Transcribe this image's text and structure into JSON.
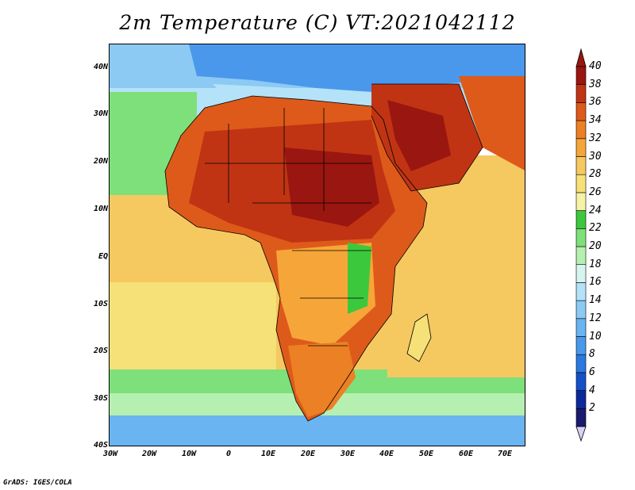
{
  "title": "2m Temperature (C) VT:2021042112",
  "footer": "GrADS: IGES/COLA",
  "map": {
    "projection": "lat-lon",
    "lon_range": [
      -30,
      75
    ],
    "lat_range": [
      -40,
      45
    ],
    "y_axis_labels": [
      "40N",
      "30N",
      "20N",
      "10N",
      "EQ",
      "10S",
      "20S",
      "30S",
      "40S"
    ],
    "x_axis_labels": [
      "30W",
      "20W",
      "10W",
      "0",
      "10E",
      "20E",
      "30E",
      "40E",
      "50E",
      "60E",
      "70E"
    ]
  },
  "colorbar": {
    "labels": [
      "2",
      "4",
      "6",
      "8",
      "10",
      "12",
      "14",
      "16",
      "18",
      "20",
      "22",
      "24",
      "26",
      "28",
      "30",
      "32",
      "34",
      "36",
      "38",
      "40"
    ],
    "colors": [
      "#1a1a6e",
      "#0a2a9a",
      "#1450c8",
      "#2a78e0",
      "#4a98ec",
      "#6ab4f2",
      "#8ccaf4",
      "#b4e2f8",
      "#d6f4f0",
      "#b6f0b0",
      "#7ee07a",
      "#3cc83c",
      "#f6f2a6",
      "#f6e078",
      "#f6c860",
      "#f6a638",
      "#ec8024",
      "#de5a1a",
      "#c03414",
      "#9a1610"
    ]
  },
  "colors": {
    "ocean_cold": "#4a98ec",
    "ocean_mild": "#b6f0b0",
    "ocean_warm": "#f6c860",
    "land_hot": "#9a1610",
    "land_warm": "#de5a1a"
  }
}
